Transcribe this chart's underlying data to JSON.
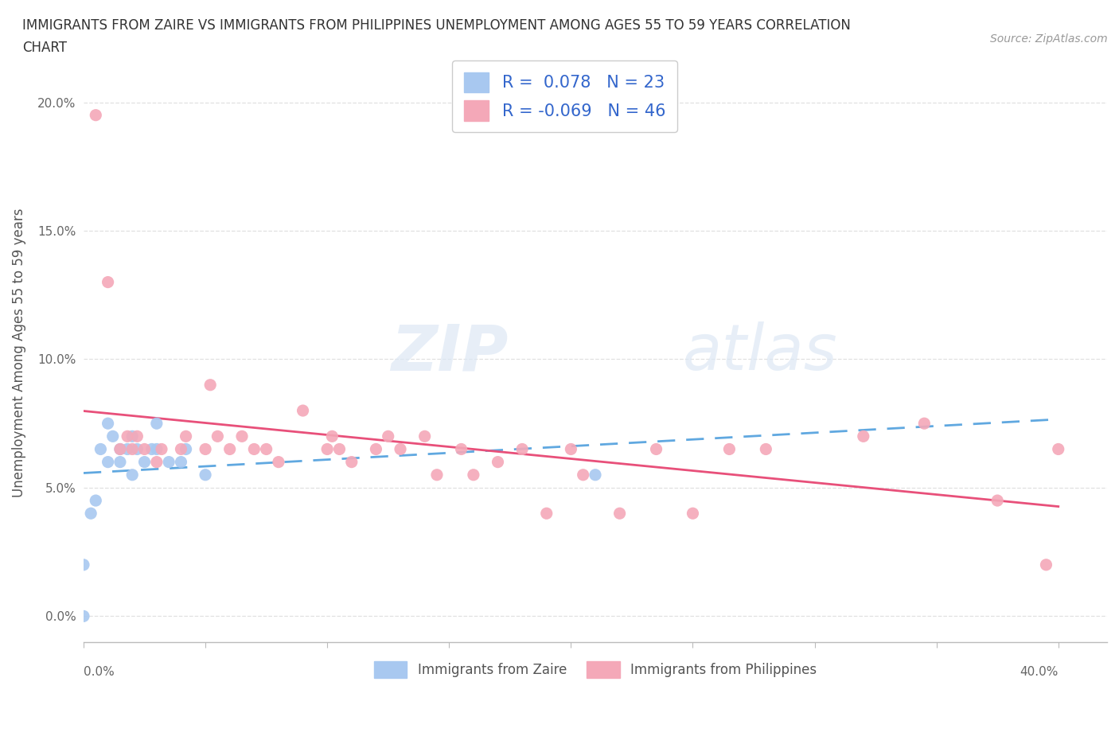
{
  "title_line1": "IMMIGRANTS FROM ZAIRE VS IMMIGRANTS FROM PHILIPPINES UNEMPLOYMENT AMONG AGES 55 TO 59 YEARS CORRELATION",
  "title_line2": "CHART",
  "source": "Source: ZipAtlas.com",
  "ylabel": "Unemployment Among Ages 55 to 59 years",
  "ytick_labels": [
    "0.0%",
    "5.0%",
    "10.0%",
    "15.0%",
    "20.0%"
  ],
  "ytick_values": [
    0.0,
    0.05,
    0.1,
    0.15,
    0.2
  ],
  "xlim": [
    0.0,
    0.42
  ],
  "ylim": [
    -0.01,
    0.215
  ],
  "zaire_color": "#a8c8f0",
  "philippines_color": "#f4a8b8",
  "zaire_line_color": "#60a8e0",
  "philippines_line_color": "#e8507a",
  "zaire_R": "0.078",
  "zaire_N": "23",
  "philippines_R": "-0.069",
  "philippines_N": "46",
  "watermark_zip": "ZIP",
  "watermark_atlas": "atlas",
  "background_color": "#ffffff",
  "grid_color": "#dddddd",
  "legend_R_N_color": "#3366cc",
  "zaire_x": [
    0.0,
    0.0,
    0.003,
    0.005,
    0.007,
    0.01,
    0.01,
    0.012,
    0.015,
    0.015,
    0.018,
    0.02,
    0.02,
    0.022,
    0.025,
    0.028,
    0.03,
    0.03,
    0.035,
    0.04,
    0.042,
    0.05,
    0.21
  ],
  "zaire_y": [
    0.0,
    0.02,
    0.04,
    0.045,
    0.065,
    0.06,
    0.075,
    0.07,
    0.06,
    0.065,
    0.065,
    0.055,
    0.07,
    0.065,
    0.06,
    0.065,
    0.065,
    0.075,
    0.06,
    0.06,
    0.065,
    0.055,
    0.055
  ],
  "phil_x": [
    0.005,
    0.01,
    0.015,
    0.018,
    0.02,
    0.022,
    0.025,
    0.03,
    0.032,
    0.04,
    0.042,
    0.05,
    0.052,
    0.055,
    0.06,
    0.065,
    0.07,
    0.075,
    0.08,
    0.09,
    0.1,
    0.102,
    0.105,
    0.11,
    0.12,
    0.125,
    0.13,
    0.14,
    0.145,
    0.155,
    0.16,
    0.17,
    0.18,
    0.19,
    0.2,
    0.205,
    0.22,
    0.235,
    0.25,
    0.265,
    0.28,
    0.32,
    0.345,
    0.375,
    0.395,
    0.4
  ],
  "phil_y": [
    0.195,
    0.13,
    0.065,
    0.07,
    0.065,
    0.07,
    0.065,
    0.06,
    0.065,
    0.065,
    0.07,
    0.065,
    0.09,
    0.07,
    0.065,
    0.07,
    0.065,
    0.065,
    0.06,
    0.08,
    0.065,
    0.07,
    0.065,
    0.06,
    0.065,
    0.07,
    0.065,
    0.07,
    0.055,
    0.065,
    0.055,
    0.06,
    0.065,
    0.04,
    0.065,
    0.055,
    0.04,
    0.065,
    0.04,
    0.065,
    0.065,
    0.07,
    0.075,
    0.045,
    0.02,
    0.065
  ]
}
